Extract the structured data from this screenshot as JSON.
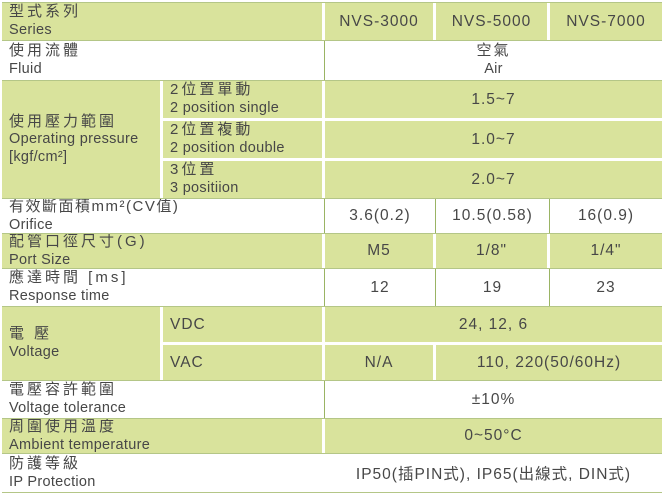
{
  "series": {
    "zh": "型式系列",
    "en": "Series",
    "values": [
      "NVS-3000",
      "NVS-5000",
      "NVS-7000"
    ]
  },
  "fluid": {
    "zh": "使用流體",
    "en": "Fluid",
    "value_zh": "空氣",
    "value_en": "Air"
  },
  "pressure": {
    "zh": "使用壓力範圍",
    "en": "Operating pressure",
    "unit": "[kgf/cm²]",
    "subs": [
      {
        "zh": "2位置單動",
        "en": "2 position single",
        "value": "1.5~7"
      },
      {
        "zh": "2位置複動",
        "en": "2 position double",
        "value": "1.0~7"
      },
      {
        "zh": "3位置",
        "en": "3 positiion",
        "value": "2.0~7"
      }
    ]
  },
  "orifice": {
    "zh": "有效斷面積mm²(CV值)",
    "en": "Orifice",
    "values": [
      "3.6(0.2)",
      "10.5(0.58)",
      "16(0.9)"
    ]
  },
  "port": {
    "zh": "配管口徑尺寸(G)",
    "en": "Port Size",
    "values": [
      "M5",
      "1/8\"",
      "1/4\""
    ]
  },
  "response": {
    "zh": "應達時間 [ms]",
    "en": "Response time",
    "values": [
      "12",
      "19",
      "23"
    ]
  },
  "voltage": {
    "zh": "電 壓",
    "en": "Voltage",
    "vdc_label": "VDC",
    "vdc_value": "24, 12, 6",
    "vac_label": "VAC",
    "vac_value_1": "N/A",
    "vac_value_23": "110, 220(50/60Hz)"
  },
  "tolerance": {
    "zh": "電壓容許範圍",
    "en": "Voltage tolerance",
    "value": "±10%"
  },
  "ambient": {
    "zh": "周圍使用溫度",
    "en": "Ambient temperature",
    "value": "0~50°C"
  },
  "ip": {
    "zh": "防護等級",
    "en": "IP Protection",
    "value": "IP50(插PIN式), IP65(出線式, DIN式)"
  },
  "colors": {
    "cell_green": "#d9e39c",
    "line_green": "#9ab464",
    "sep_green": "#b4c687"
  }
}
